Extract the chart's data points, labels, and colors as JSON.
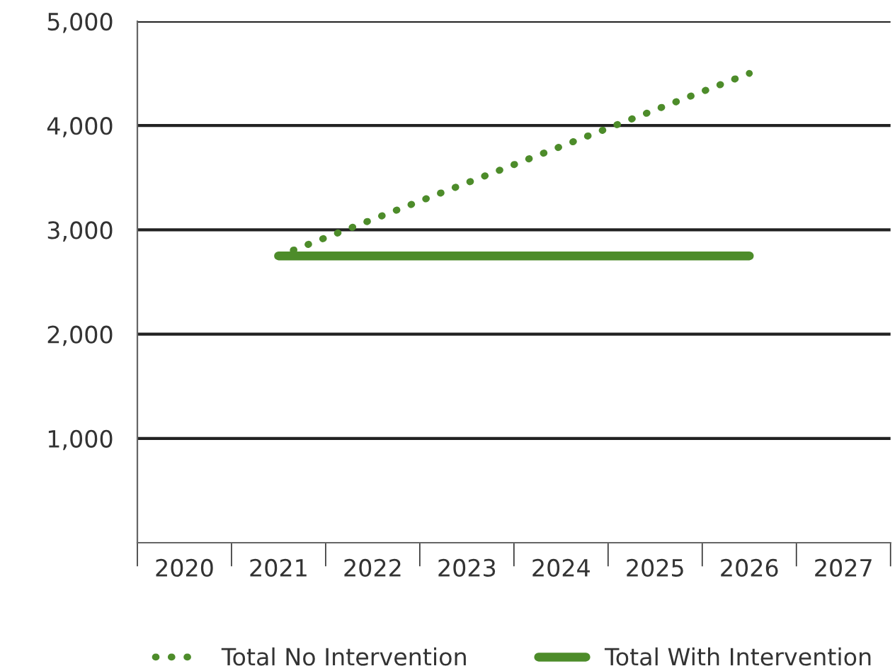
{
  "chart_data": {
    "type": "line",
    "categories": [
      "2020",
      "2021",
      "2022",
      "2023",
      "2024",
      "2025",
      "2026",
      "2027"
    ],
    "series": [
      {
        "name": "Total No Intervention",
        "color": "#4d8c2a",
        "line_style": "dotted",
        "values": [
          null,
          2750,
          3100,
          3450,
          3800,
          4150,
          4500,
          null
        ]
      },
      {
        "name": "Total With Intervention",
        "color": "#4d8c2a",
        "line_style": "solid",
        "values": [
          null,
          2750,
          2750,
          2750,
          2750,
          2750,
          2750,
          null
        ]
      }
    ],
    "ylim": [
      0,
      5000
    ],
    "yticks": [
      {
        "value": 1000,
        "label": "1,000"
      },
      {
        "value": 2000,
        "label": "2,000"
      },
      {
        "value": 3000,
        "label": "3,000"
      },
      {
        "value": 4000,
        "label": "4,000"
      },
      {
        "value": 5000,
        "label": "5,000"
      }
    ],
    "grid": "y",
    "legend": "bottom"
  }
}
